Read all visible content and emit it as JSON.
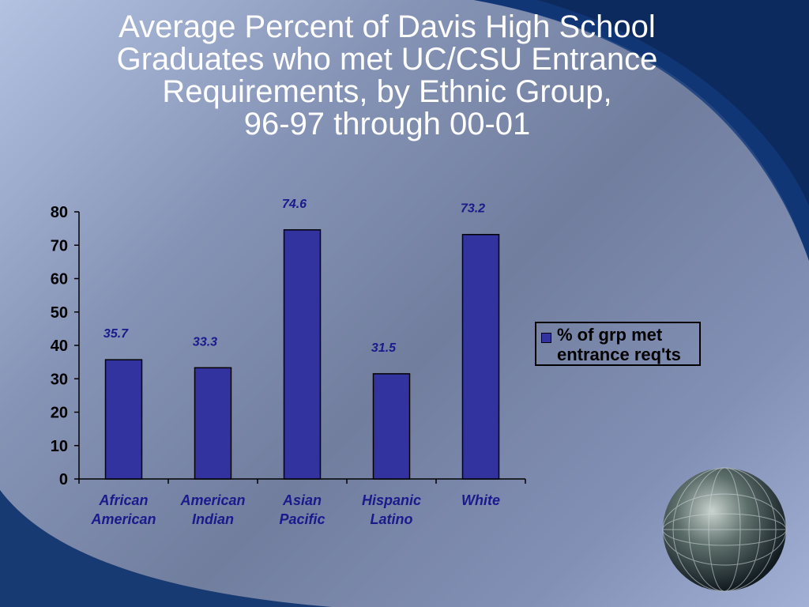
{
  "title_lines": [
    "Average Percent of Davis High School",
    "Graduates who met UC/CSU Entrance",
    "Requirements, by Ethnic Group,",
    "96-97 through 00-01"
  ],
  "chart_data": {
    "type": "bar",
    "title": "Average Percent of Davis High School Graduates who met UC/CSU Entrance Requirements, by Ethnic Group, 96-97 through 00-01",
    "categories": [
      [
        "African",
        "American"
      ],
      [
        "American",
        "Indian"
      ],
      [
        "Asian",
        "Pacific"
      ],
      [
        "Hispanic",
        "Latino"
      ],
      [
        "White"
      ]
    ],
    "series": [
      {
        "name": "% of grp met entrance req'ts",
        "values": [
          35.7,
          33.3,
          74.6,
          31.5,
          73.2
        ],
        "color": "#3333a0"
      }
    ],
    "data_labels": [
      "35.7",
      "33.3",
      "74.6",
      "31.5",
      "73.2"
    ],
    "ylim": [
      0,
      80
    ],
    "yticks": [
      0,
      10,
      20,
      30,
      40,
      50,
      60,
      70,
      80
    ],
    "grid": false,
    "legend": "right",
    "legend_lines": [
      "% of grp met",
      "entrance req'ts"
    ]
  }
}
